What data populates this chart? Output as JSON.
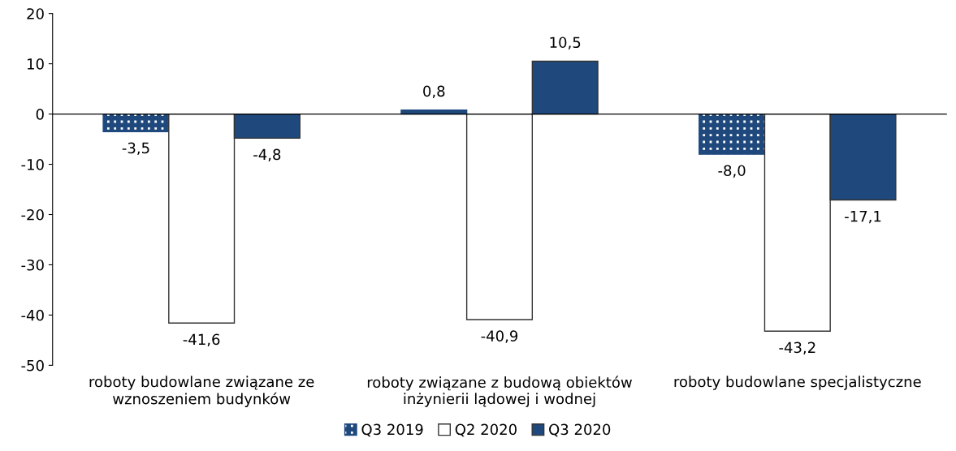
{
  "chart_data": {
    "type": "bar",
    "categories": [
      "roboty budowlane związane ze\nwznoszeniem budynków",
      "roboty związane z budową obiektów\ninżynierii lądowej i wodnej",
      "roboty budowlane specjalistyczne"
    ],
    "series": [
      {
        "name": "Q3 2019",
        "color": "#1f497d",
        "values": [
          -3.5,
          0.8,
          -8.0
        ],
        "value_labels": [
          "-3,5",
          "0,8",
          "-8,0"
        ]
      },
      {
        "name": "Q2 2020",
        "color": "#ffffff",
        "values": [
          -41.6,
          -40.9,
          -43.2
        ],
        "value_labels": [
          "-41,6",
          "-40,9",
          "-43,2"
        ]
      },
      {
        "name": "Q3 2020",
        "color": "#1f497d",
        "values": [
          -4.8,
          10.5,
          -17.1
        ],
        "value_labels": [
          "-4,8",
          "10,5",
          "-17,1"
        ]
      }
    ],
    "ylim": [
      -50,
      20
    ],
    "yticks": [
      -50,
      -40,
      -30,
      -20,
      -10,
      0,
      10,
      20
    ],
    "legend": "bottom"
  }
}
